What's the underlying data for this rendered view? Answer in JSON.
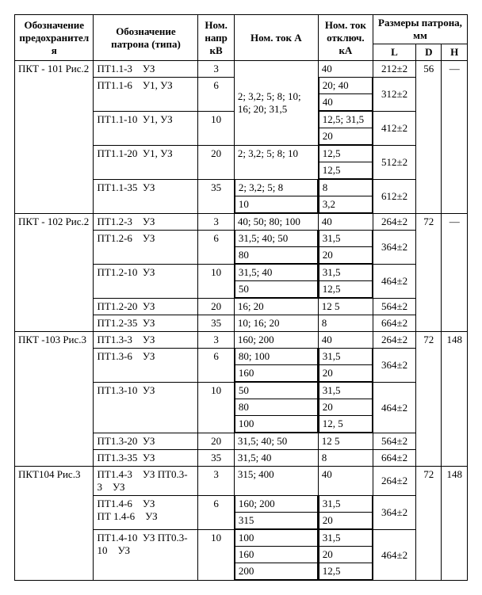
{
  "headers": {
    "fuse": "Обозначение предохранителя",
    "cartridge": "Обозначение патрона (типа)",
    "voltage": "Ном. напр кВ",
    "current": "Ном. ток А",
    "shortCurrent": "Ном. ток отключ. кА",
    "dims": "Размеры патрона, мм",
    "L": "L",
    "D": "D",
    "H": "H"
  },
  "groups": [
    {
      "fuse": "ПКТ - 101 Рис.2",
      "D": "56",
      "H": "—",
      "currentTop": "2; 3,2; 5; 8; 10; 16; 20; 31,5",
      "currentTopSpan": 3,
      "rows": [
        {
          "cartridge": "ПТ1.1-3    УЗ",
          "kv": "3",
          "cur": null,
          "ka": [
            "40"
          ],
          "L": "212±2"
        },
        {
          "cartridge": "ПТ1.1-6    У1, УЗ",
          "kv": "6",
          "cur": null,
          "ka": [
            "20; 40",
            "40"
          ],
          "L": "312±2"
        },
        {
          "cartridge": "ПТ1.1-10  У1, УЗ",
          "kv": "10",
          "cur": null,
          "ka": [
            "12,5; 31,5",
            "20"
          ],
          "L": "412±2"
        },
        {
          "cartridge": "ПТ1.1-20  У1, УЗ",
          "kv": "20",
          "cur": [
            "2; 3,2; 5; 8; 10"
          ],
          "ka": [
            "12,5",
            "12,5"
          ],
          "L": "512±2"
        },
        {
          "cartridge": "ПТ1.1-35  УЗ",
          "kv": "35",
          "cur": [
            "2; 3,2; 5; 8",
            "10"
          ],
          "ka": [
            "8",
            "3,2"
          ],
          "L": "612±2"
        }
      ]
    },
    {
      "fuse": "ПКТ - 102 Рис.2",
      "D": "72",
      "H": "—",
      "rows": [
        {
          "cartridge": "ПТ1.2-3    УЗ",
          "kv": "3",
          "cur": [
            "40; 50; 80; 100"
          ],
          "ka": [
            "40"
          ],
          "L": "264±2"
        },
        {
          "cartridge": "ПТ1.2-6    УЗ",
          "kv": "6",
          "cur": [
            "31,5; 40; 50",
            "80"
          ],
          "ka": [
            "31,5",
            "20"
          ],
          "L": "364±2"
        },
        {
          "cartridge": "ПТ1.2-10  УЗ",
          "kv": "10",
          "cur": [
            "31,5; 40",
            "50"
          ],
          "ka": [
            "31,5",
            "12,5"
          ],
          "L": "464±2"
        },
        {
          "cartridge": "ПТ1.2-20  УЗ",
          "kv": "20",
          "cur": [
            "16; 20"
          ],
          "ka": [
            "12 5"
          ],
          "L": "564±2"
        },
        {
          "cartridge": "ПТ1.2-35  УЗ",
          "kv": "35",
          "cur": [
            "10; 16; 20"
          ],
          "ka": [
            "8"
          ],
          "L": "664±2"
        }
      ]
    },
    {
      "fuse": "ПКТ -103 Рис.3",
      "D": "72",
      "H": "148",
      "rows": [
        {
          "cartridge": "ПТ1.3-3    УЗ",
          "kv": "3",
          "cur": [
            "160; 200"
          ],
          "ka": [
            "40"
          ],
          "L": "264±2"
        },
        {
          "cartridge": "ПТ1.3-6    УЗ",
          "kv": "6",
          "cur": [
            "80; 100",
            "160"
          ],
          "ka": [
            "31,5",
            "20"
          ],
          "L": "364±2"
        },
        {
          "cartridge": "ПТ1.3-10  УЗ",
          "kv": "10",
          "cur": [
            "50",
            "80",
            "100"
          ],
          "ka": [
            "31,5",
            "20",
            "12, 5"
          ],
          "L": "464±2"
        },
        {
          "cartridge": "ПТ1.3-20  УЗ",
          "kv": "20",
          "cur": [
            "31,5;  40;  50"
          ],
          "ka": [
            "12 5"
          ],
          "L": "564±2"
        },
        {
          "cartridge": "ПТ1.3-35  УЗ",
          "kv": "35",
          "cur": [
            "31,5; 40"
          ],
          "ka": [
            "8"
          ],
          "L": "664±2"
        }
      ]
    },
    {
      "fuse": "ПКТ104 Рис.3",
      "D": "72",
      "H": "148",
      "rows": [
        {
          "cartridge": "ПТ1.4-3    УЗ ПТ0.3-3    УЗ",
          "kv": "3",
          "cur": [
            "315; 400"
          ],
          "ka": [
            "40"
          ],
          "L": "264±2"
        },
        {
          "cartridge": "ПТ1.4-6    УЗ\nПТ 1.4-6    УЗ",
          "kv": "6",
          "cur": [
            "160; 200",
            "315"
          ],
          "ka": [
            "31,5",
            "20"
          ],
          "L": "364±2"
        },
        {
          "cartridge": "ПТ1.4-10  УЗ ПТ0.3-10    УЗ",
          "kv": "10",
          "cur": [
            "100",
            "160",
            "200"
          ],
          "ka": [
            "31,5",
            "20",
            "12,5"
          ],
          "L": "464±2"
        }
      ]
    }
  ]
}
